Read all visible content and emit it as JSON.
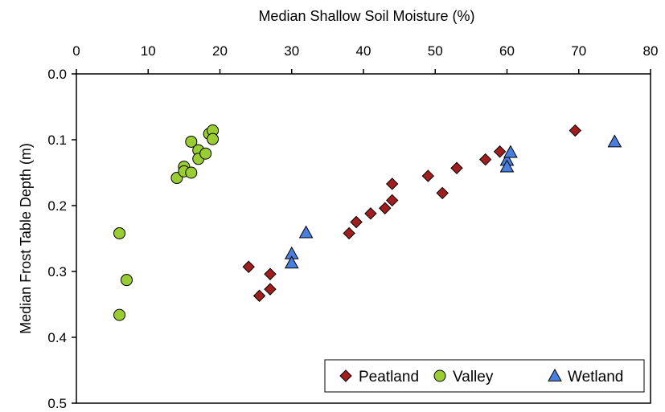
{
  "chart_data": {
    "type": "scatter",
    "xlabel": "Median Shallow Soil Moisture (%)",
    "ylabel": "Median Frost Table Depth (m)",
    "xlim": [
      0,
      80
    ],
    "ylim": [
      0.0,
      0.5
    ],
    "x_ticks": [
      "0",
      "10",
      "20",
      "30",
      "40",
      "50",
      "60",
      "70",
      "80"
    ],
    "y_ticks": [
      "0.0",
      "0.1",
      "0.2",
      "0.3",
      "0.4",
      "0.5"
    ],
    "x_axis_position": "top",
    "y_axis_inverted": true,
    "grid": false,
    "legend_position": "bottom-right",
    "series": [
      {
        "name": "Peatland",
        "marker": "diamond",
        "color": "#a01e1e",
        "points": [
          [
            24,
            0.293
          ],
          [
            25.5,
            0.337
          ],
          [
            27,
            0.327
          ],
          [
            27,
            0.304
          ],
          [
            38,
            0.242
          ],
          [
            39,
            0.225
          ],
          [
            41,
            0.212
          ],
          [
            43,
            0.204
          ],
          [
            44,
            0.192
          ],
          [
            44,
            0.167
          ],
          [
            49,
            0.155
          ],
          [
            51,
            0.181
          ],
          [
            53,
            0.143
          ],
          [
            57,
            0.13
          ],
          [
            59,
            0.118
          ],
          [
            69.5,
            0.086
          ]
        ]
      },
      {
        "name": "Valley",
        "marker": "circle",
        "color": "#9acd32",
        "points": [
          [
            6,
            0.242
          ],
          [
            6,
            0.366
          ],
          [
            7,
            0.313
          ],
          [
            14,
            0.158
          ],
          [
            15,
            0.141
          ],
          [
            15,
            0.148
          ],
          [
            16,
            0.103
          ],
          [
            16,
            0.15
          ],
          [
            17,
            0.116
          ],
          [
            17,
            0.129
          ],
          [
            18,
            0.121
          ],
          [
            18.5,
            0.091
          ],
          [
            19,
            0.086
          ],
          [
            19,
            0.099
          ]
        ]
      },
      {
        "name": "Wetland",
        "marker": "triangle",
        "color": "#4a7fe0",
        "points": [
          [
            30,
            0.273
          ],
          [
            30,
            0.287
          ],
          [
            32,
            0.241
          ],
          [
            60,
            0.131
          ],
          [
            60,
            0.141
          ],
          [
            60.5,
            0.119
          ],
          [
            75,
            0.103
          ]
        ]
      }
    ]
  }
}
